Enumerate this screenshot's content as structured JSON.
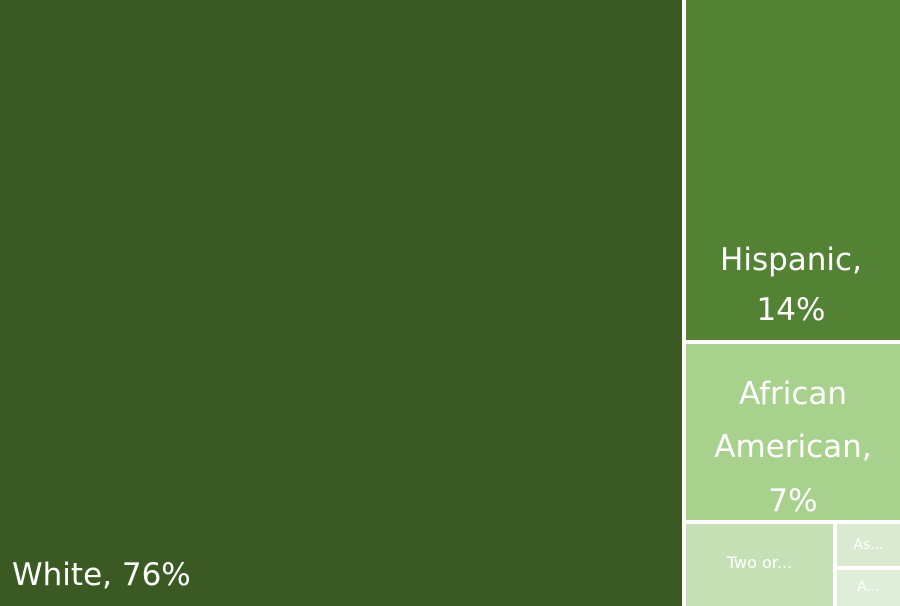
{
  "chart_data": {
    "type": "treemap",
    "title": "",
    "categories": [
      "White",
      "Hispanic",
      "African American",
      "Two or...",
      "As...",
      "A..."
    ],
    "values": [
      76,
      14,
      7,
      2,
      1,
      1
    ],
    "colors": [
      "#3b5a23",
      "#548235",
      "#a9d18e",
      "#c5e0b4",
      "#d9ead0",
      "#dfeed8"
    ],
    "labels": {
      "white": {
        "name": "White,",
        "value": "76%"
      },
      "hispanic": {
        "name": "Hispanic,",
        "value": "14%"
      },
      "african": {
        "line1": "African",
        "line2": "American,",
        "value": "7%"
      },
      "two": {
        "name": "Two or..."
      },
      "asian": {
        "name": "As..."
      },
      "aian": {
        "name": "A..."
      }
    }
  }
}
